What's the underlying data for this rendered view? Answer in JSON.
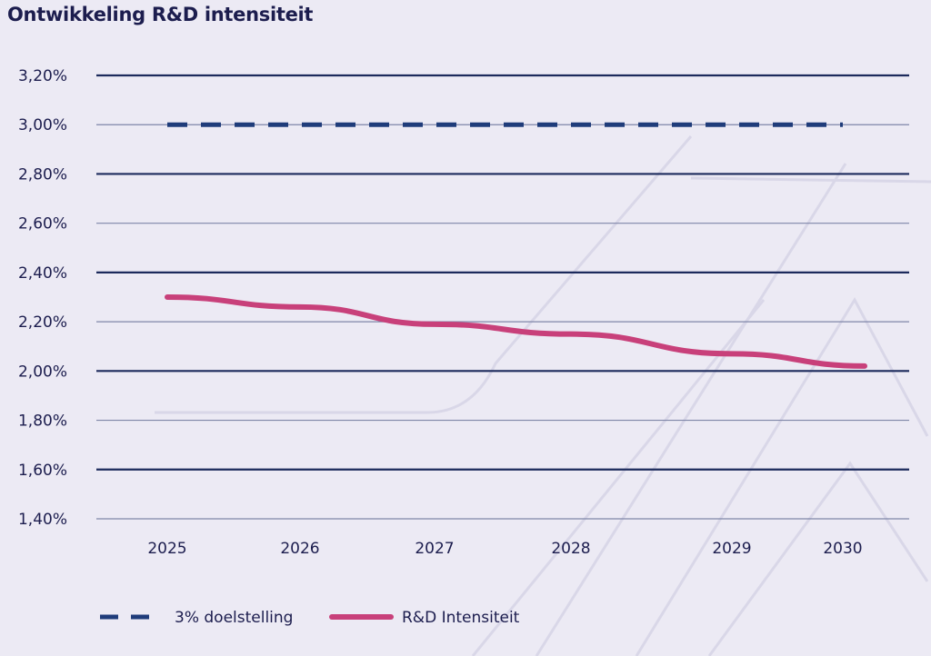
{
  "chart_data": {
    "type": "line",
    "title": "Ontwikkeling R&D intensiteit",
    "x": [
      "2025",
      "2026",
      "2027",
      "2028",
      "2029",
      "2030"
    ],
    "y_ticks": [
      "3,20%",
      "3,00%",
      "2,80%",
      "2,60%",
      "2,40%",
      "2,20%",
      "2,00%",
      "1,80%",
      "1,60%",
      "1,40%"
    ],
    "ylim": [
      1.4,
      3.2
    ],
    "grid": true,
    "legend_position": "bottom-left",
    "series": [
      {
        "name": "3% doelstelling",
        "style": "dashed",
        "color": "#1f3c7a",
        "values": [
          3.0,
          3.0,
          3.0,
          3.0,
          3.0,
          3.0
        ]
      },
      {
        "name": "R&D Intensiteit",
        "style": "solid",
        "color": "#c8407a",
        "values": [
          2.3,
          2.26,
          2.19,
          2.15,
          2.07,
          2.02
        ]
      }
    ]
  }
}
